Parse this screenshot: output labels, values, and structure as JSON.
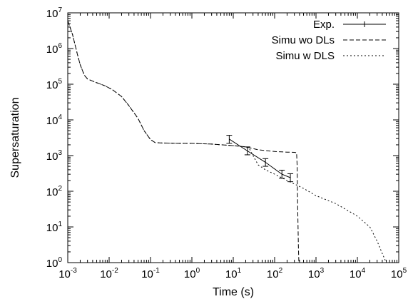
{
  "chart_data": {
    "type": "line",
    "title": "",
    "xlabel": "Time (s)",
    "ylabel": "Supersaturation",
    "xscale": "log",
    "yscale": "log",
    "xlim": [
      0.001,
      100000
    ],
    "ylim": [
      1,
      10000000
    ],
    "x_ticks": [
      {
        "base": "10",
        "exp": "-3",
        "value": 0.001
      },
      {
        "base": "10",
        "exp": "-2",
        "value": 0.01
      },
      {
        "base": "10",
        "exp": "-1",
        "value": 0.1
      },
      {
        "base": "10",
        "exp": "0",
        "value": 1
      },
      {
        "base": "10",
        "exp": "1",
        "value": 10
      },
      {
        "base": "10",
        "exp": "2",
        "value": 100
      },
      {
        "base": "10",
        "exp": "3",
        "value": 1000
      },
      {
        "base": "10",
        "exp": "4",
        "value": 10000
      },
      {
        "base": "10",
        "exp": "5",
        "value": 100000
      }
    ],
    "y_ticks": [
      {
        "base": "10",
        "exp": "0",
        "value": 1
      },
      {
        "base": "10",
        "exp": "1",
        "value": 10
      },
      {
        "base": "10",
        "exp": "2",
        "value": 100
      },
      {
        "base": "10",
        "exp": "3",
        "value": 1000
      },
      {
        "base": "10",
        "exp": "4",
        "value": 10000
      },
      {
        "base": "10",
        "exp": "5",
        "value": 100000
      },
      {
        "base": "10",
        "exp": "6",
        "value": 1000000
      },
      {
        "base": "10",
        "exp": "7",
        "value": 10000000
      }
    ],
    "legend_position": "top-right",
    "series": [
      {
        "name": "Exp.",
        "style": "solid-errorbars",
        "color": "#000000",
        "points": [
          {
            "x": 8,
            "y": 2900,
            "ylo": 2200,
            "yhi": 3700
          },
          {
            "x": 22,
            "y": 1350,
            "ylo": 1050,
            "yhi": 1750
          },
          {
            "x": 60,
            "y": 650,
            "ylo": 500,
            "yhi": 820
          },
          {
            "x": 150,
            "y": 300,
            "ylo": 230,
            "yhi": 390
          },
          {
            "x": 240,
            "y": 240,
            "ylo": 185,
            "yhi": 310
          }
        ]
      },
      {
        "name": "Simu wo DLs",
        "style": "dashed",
        "color": "#000000",
        "x": [
          0.001,
          0.0013,
          0.0017,
          0.002,
          0.0025,
          0.003,
          0.005,
          0.008,
          0.012,
          0.02,
          0.03,
          0.05,
          0.07,
          0.1,
          0.13,
          0.2,
          0.5,
          1,
          3,
          10,
          20,
          25,
          40,
          100,
          200,
          300,
          340,
          350,
          360,
          375,
          385
        ],
        "y": [
          6000000,
          2500000,
          700000,
          350000,
          180000,
          140000,
          110000,
          90000,
          70000,
          45000,
          25000,
          11000,
          5000,
          2800,
          2300,
          2250,
          2200,
          2200,
          2100,
          1900,
          1750,
          1650,
          1450,
          1300,
          1250,
          1230,
          1200,
          500,
          40,
          3,
          1
        ]
      },
      {
        "name": "Simu w DLS",
        "style": "dotted",
        "color": "#000000",
        "x": [
          0.001,
          0.0013,
          0.0017,
          0.002,
          0.0025,
          0.003,
          0.005,
          0.008,
          0.012,
          0.02,
          0.03,
          0.05,
          0.07,
          0.1,
          0.13,
          0.2,
          0.5,
          1,
          3,
          10,
          20,
          25,
          30,
          40,
          60,
          100,
          200,
          500,
          1000,
          3000,
          10000,
          20000,
          30000,
          40000,
          50000
        ],
        "y": [
          6000000,
          2500000,
          700000,
          350000,
          180000,
          140000,
          110000,
          90000,
          70000,
          45000,
          25000,
          11000,
          5000,
          2800,
          2300,
          2250,
          2200,
          2200,
          2100,
          1900,
          1750,
          1500,
          1000,
          550,
          400,
          300,
          200,
          120,
          75,
          45,
          20,
          10,
          4,
          1.8,
          1
        ]
      }
    ]
  }
}
